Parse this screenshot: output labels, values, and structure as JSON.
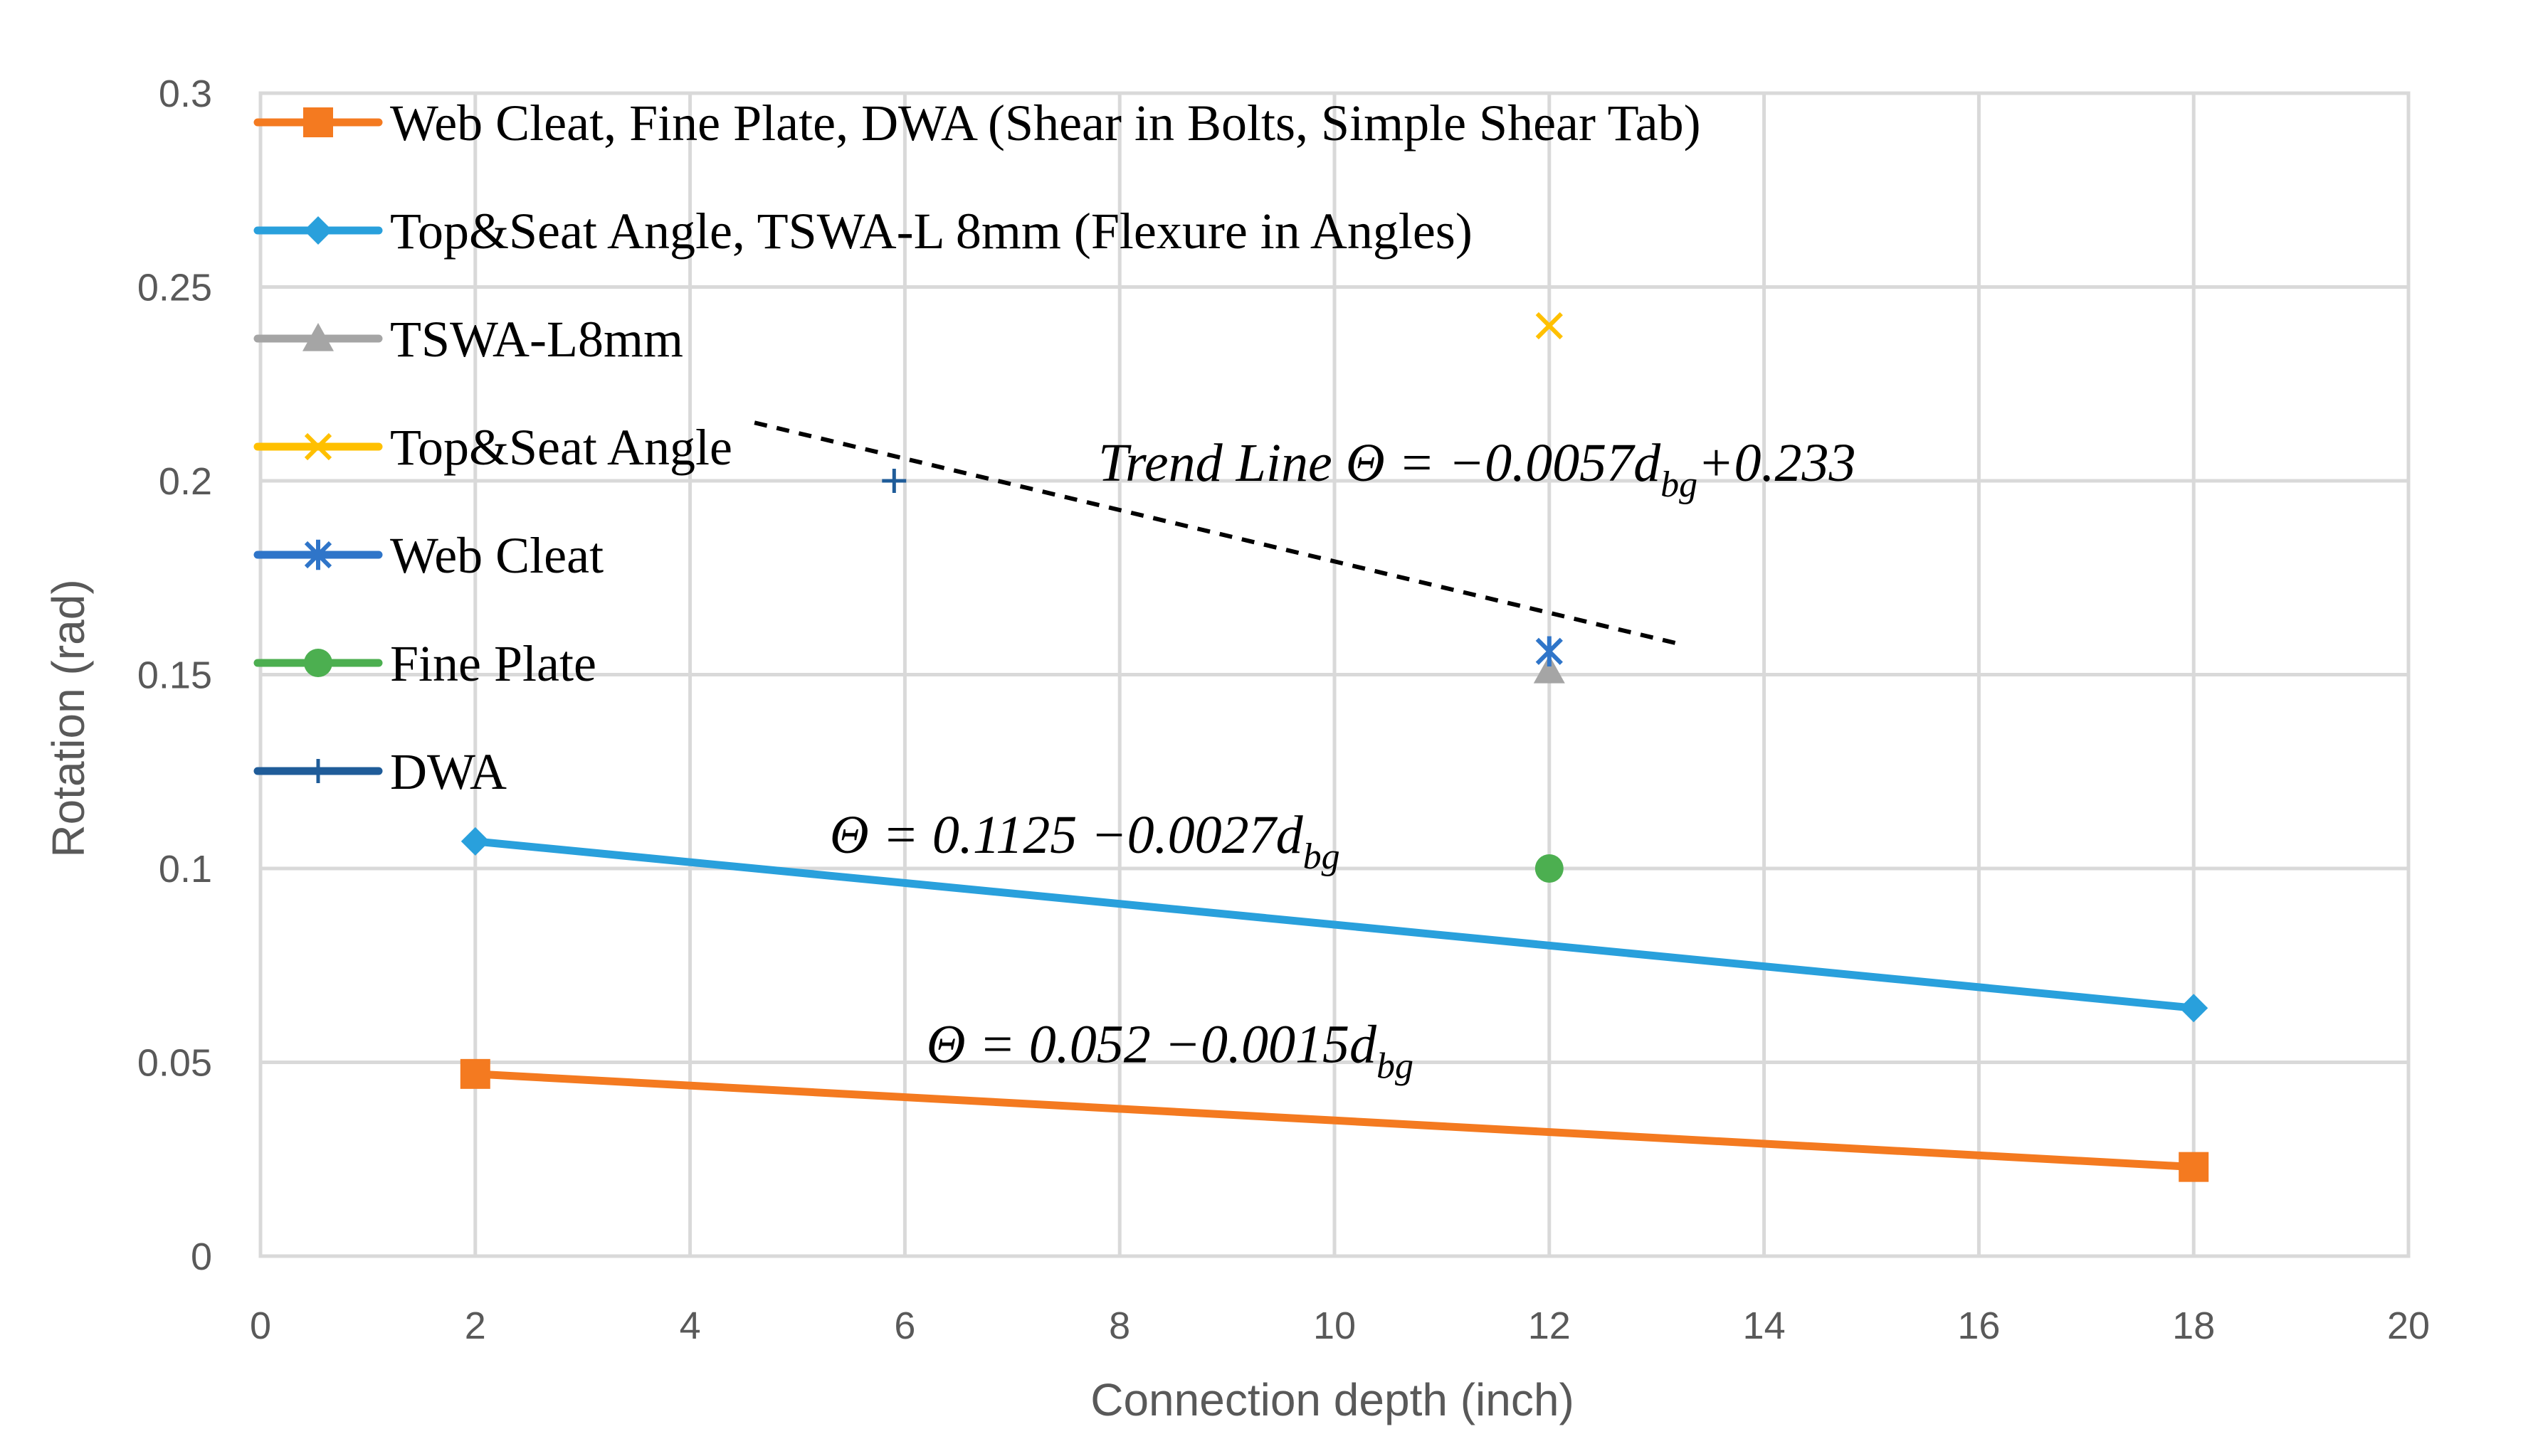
{
  "chart_data": {
    "type": "line",
    "title": "",
    "xlabel": "Connection depth (inch)",
    "ylabel": "Rotation (rad)",
    "xlim": [
      0,
      20
    ],
    "ylim": [
      0,
      0.3
    ],
    "grid": true,
    "x_ticks": [
      "0",
      "2",
      "4",
      "6",
      "8",
      "10",
      "12",
      "14",
      "16",
      "18",
      "20"
    ],
    "y_ticks": [
      "0",
      "0.05",
      "0.1",
      "0.15",
      "0.2",
      "0.25",
      "0.3"
    ],
    "legend_position": "top-left inside",
    "series": [
      {
        "name": "Web Cleat, Fine Plate, DWA (Shear in Bolts, Simple Shear Tab)",
        "color": "#F47A20",
        "marker": "square",
        "line": true,
        "points": [
          [
            2,
            0.047
          ],
          [
            18,
            0.023
          ]
        ]
      },
      {
        "name": "Top&Seat Angle, TSWA-L 8mm (Flexure in Angles)",
        "color": "#29A0DC",
        "marker": "diamond",
        "line": true,
        "points": [
          [
            2,
            0.107
          ],
          [
            18,
            0.064
          ]
        ]
      },
      {
        "name": "TSWA-L8mm",
        "color": "#A5A5A5",
        "marker": "triangle",
        "line": false,
        "points": [
          [
            12,
            0.151
          ]
        ]
      },
      {
        "name": "Top&Seat Angle",
        "color": "#FFC000",
        "marker": "x",
        "line": false,
        "points": [
          [
            12,
            0.24
          ]
        ]
      },
      {
        "name": "Web Cleat",
        "color": "#2F75C9",
        "marker": "star",
        "line": false,
        "points": [
          [
            12,
            0.156
          ]
        ]
      },
      {
        "name": "Fine Plate",
        "color": "#4CAF50",
        "marker": "circle",
        "line": false,
        "points": [
          [
            12,
            0.1
          ]
        ]
      },
      {
        "name": "DWA",
        "color": "#1F5C99",
        "marker": "plus",
        "line": false,
        "points": [
          [
            5.9,
            0.2
          ]
        ]
      }
    ],
    "trend_line": {
      "color": "#000000",
      "style": "dashed",
      "points": [
        [
          4.6,
          0.215
        ],
        [
          13.2,
          0.158
        ]
      ]
    },
    "annotations": [
      {
        "id": "trend",
        "prefix": "Trend Line Θ = −0.0057d",
        "sub": "bg",
        "suffix": "+0.233",
        "x": 7.8,
        "y": 0.2
      },
      {
        "id": "blue",
        "prefix": "Θ = 0.1125 −0.0027d",
        "sub": "bg",
        "suffix": "",
        "x": 5.3,
        "y": 0.104
      },
      {
        "id": "orange",
        "prefix": "Θ = 0.052 −0.0015d",
        "sub": "bg",
        "suffix": "",
        "x": 6.2,
        "y": 0.05
      }
    ]
  }
}
